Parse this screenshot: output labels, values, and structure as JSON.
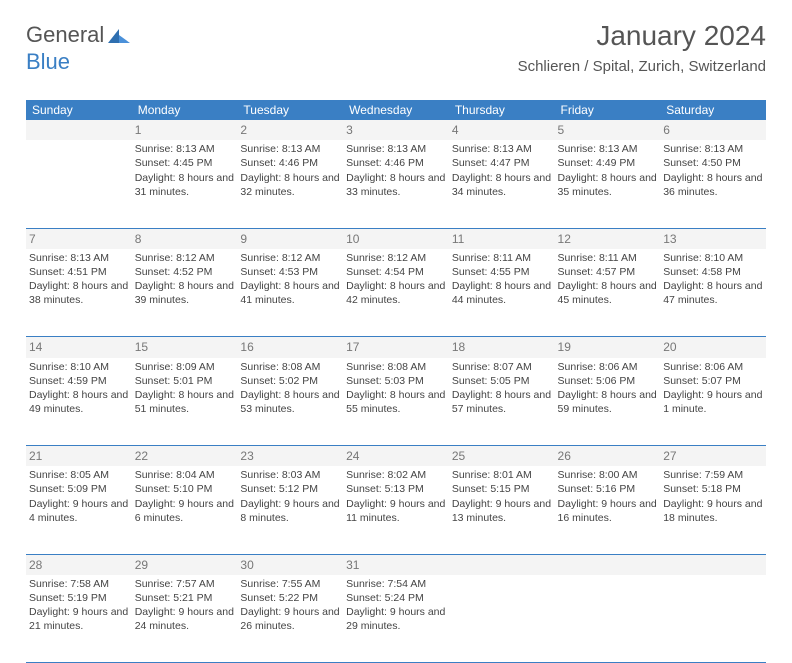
{
  "logo": {
    "text_a": "General",
    "text_b": "Blue"
  },
  "title": "January 2024",
  "location": "Schlieren / Spital, Zurich, Switzerland",
  "colors": {
    "header_bg": "#3a7fc4",
    "header_fg": "#ffffff",
    "border": "#3a7fc4",
    "daynum_bg": "#f4f4f4",
    "daynum_fg": "#777777",
    "text": "#444444",
    "title_fg": "#555555"
  },
  "fonts": {
    "title_size": 28,
    "location_size": 15,
    "header_size": 12,
    "cell_size": 10.5
  },
  "days": [
    "Sunday",
    "Monday",
    "Tuesday",
    "Wednesday",
    "Thursday",
    "Friday",
    "Saturday"
  ],
  "weeks": [
    [
      {
        "n": "",
        "sr": "",
        "ss": "",
        "dl": ""
      },
      {
        "n": "1",
        "sr": "8:13 AM",
        "ss": "4:45 PM",
        "dl": "8 hours and 31 minutes."
      },
      {
        "n": "2",
        "sr": "8:13 AM",
        "ss": "4:46 PM",
        "dl": "8 hours and 32 minutes."
      },
      {
        "n": "3",
        "sr": "8:13 AM",
        "ss": "4:46 PM",
        "dl": "8 hours and 33 minutes."
      },
      {
        "n": "4",
        "sr": "8:13 AM",
        "ss": "4:47 PM",
        "dl": "8 hours and 34 minutes."
      },
      {
        "n": "5",
        "sr": "8:13 AM",
        "ss": "4:49 PM",
        "dl": "8 hours and 35 minutes."
      },
      {
        "n": "6",
        "sr": "8:13 AM",
        "ss": "4:50 PM",
        "dl": "8 hours and 36 minutes."
      }
    ],
    [
      {
        "n": "7",
        "sr": "8:13 AM",
        "ss": "4:51 PM",
        "dl": "8 hours and 38 minutes."
      },
      {
        "n": "8",
        "sr": "8:12 AM",
        "ss": "4:52 PM",
        "dl": "8 hours and 39 minutes."
      },
      {
        "n": "9",
        "sr": "8:12 AM",
        "ss": "4:53 PM",
        "dl": "8 hours and 41 minutes."
      },
      {
        "n": "10",
        "sr": "8:12 AM",
        "ss": "4:54 PM",
        "dl": "8 hours and 42 minutes."
      },
      {
        "n": "11",
        "sr": "8:11 AM",
        "ss": "4:55 PM",
        "dl": "8 hours and 44 minutes."
      },
      {
        "n": "12",
        "sr": "8:11 AM",
        "ss": "4:57 PM",
        "dl": "8 hours and 45 minutes."
      },
      {
        "n": "13",
        "sr": "8:10 AM",
        "ss": "4:58 PM",
        "dl": "8 hours and 47 minutes."
      }
    ],
    [
      {
        "n": "14",
        "sr": "8:10 AM",
        "ss": "4:59 PM",
        "dl": "8 hours and 49 minutes."
      },
      {
        "n": "15",
        "sr": "8:09 AM",
        "ss": "5:01 PM",
        "dl": "8 hours and 51 minutes."
      },
      {
        "n": "16",
        "sr": "8:08 AM",
        "ss": "5:02 PM",
        "dl": "8 hours and 53 minutes."
      },
      {
        "n": "17",
        "sr": "8:08 AM",
        "ss": "5:03 PM",
        "dl": "8 hours and 55 minutes."
      },
      {
        "n": "18",
        "sr": "8:07 AM",
        "ss": "5:05 PM",
        "dl": "8 hours and 57 minutes."
      },
      {
        "n": "19",
        "sr": "8:06 AM",
        "ss": "5:06 PM",
        "dl": "8 hours and 59 minutes."
      },
      {
        "n": "20",
        "sr": "8:06 AM",
        "ss": "5:07 PM",
        "dl": "9 hours and 1 minute."
      }
    ],
    [
      {
        "n": "21",
        "sr": "8:05 AM",
        "ss": "5:09 PM",
        "dl": "9 hours and 4 minutes."
      },
      {
        "n": "22",
        "sr": "8:04 AM",
        "ss": "5:10 PM",
        "dl": "9 hours and 6 minutes."
      },
      {
        "n": "23",
        "sr": "8:03 AM",
        "ss": "5:12 PM",
        "dl": "9 hours and 8 minutes."
      },
      {
        "n": "24",
        "sr": "8:02 AM",
        "ss": "5:13 PM",
        "dl": "9 hours and 11 minutes."
      },
      {
        "n": "25",
        "sr": "8:01 AM",
        "ss": "5:15 PM",
        "dl": "9 hours and 13 minutes."
      },
      {
        "n": "26",
        "sr": "8:00 AM",
        "ss": "5:16 PM",
        "dl": "9 hours and 16 minutes."
      },
      {
        "n": "27",
        "sr": "7:59 AM",
        "ss": "5:18 PM",
        "dl": "9 hours and 18 minutes."
      }
    ],
    [
      {
        "n": "28",
        "sr": "7:58 AM",
        "ss": "5:19 PM",
        "dl": "9 hours and 21 minutes."
      },
      {
        "n": "29",
        "sr": "7:57 AM",
        "ss": "5:21 PM",
        "dl": "9 hours and 24 minutes."
      },
      {
        "n": "30",
        "sr": "7:55 AM",
        "ss": "5:22 PM",
        "dl": "9 hours and 26 minutes."
      },
      {
        "n": "31",
        "sr": "7:54 AM",
        "ss": "5:24 PM",
        "dl": "9 hours and 29 minutes."
      },
      {
        "n": "",
        "sr": "",
        "ss": "",
        "dl": ""
      },
      {
        "n": "",
        "sr": "",
        "ss": "",
        "dl": ""
      },
      {
        "n": "",
        "sr": "",
        "ss": "",
        "dl": ""
      }
    ]
  ],
  "labels": {
    "sunrise": "Sunrise:",
    "sunset": "Sunset:",
    "daylight": "Daylight:"
  }
}
